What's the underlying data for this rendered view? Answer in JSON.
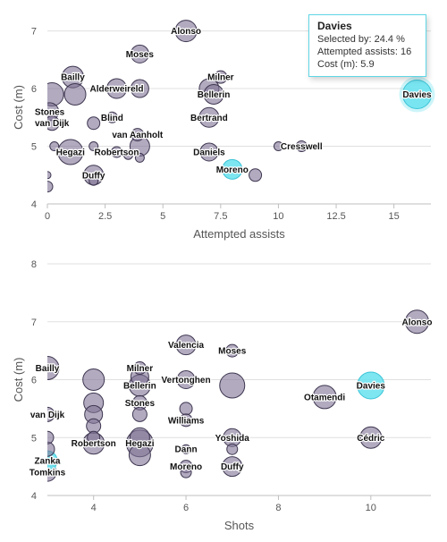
{
  "colors": {
    "bubble_fill": "#7e7394",
    "bubble_fill_opacity": 0.6,
    "bubble_stroke": "#3e3650",
    "highlight_fill": "#6fe3ef",
    "highlight_stroke": "#3cc4d6",
    "grid": "#e0e0e0",
    "axis_text": "#555555"
  },
  "chart_data": [
    {
      "type": "scatter",
      "xlabel": "Attempted assists",
      "ylabel": "Cost (m)",
      "xlim": [
        0,
        16.6
      ],
      "ylim": [
        4,
        7.35
      ],
      "xticks": [
        0,
        2.5,
        5,
        7.5,
        10,
        12.5,
        15
      ],
      "xtick_labels": [
        "0",
        "2.5",
        "5",
        "7.5",
        "10",
        "12.5",
        "15"
      ],
      "yticks": [
        4,
        5,
        6,
        7
      ],
      "grid": "horizontal",
      "points": [
        {
          "label": "Alonso",
          "x": 6,
          "y": 7.0,
          "r": 12
        },
        {
          "label": "Moses",
          "x": 4,
          "y": 6.6,
          "r": 10
        },
        {
          "label": "Bailly",
          "x": 1.1,
          "y": 6.2,
          "r": 12
        },
        {
          "label": "",
          "x": 1.2,
          "y": 5.9,
          "r": 12
        },
        {
          "label": "Alderweireld",
          "x": 3,
          "y": 6.0,
          "r": 11
        },
        {
          "label": "",
          "x": 4,
          "y": 6.0,
          "r": 10
        },
        {
          "label": "Milner",
          "x": 7.5,
          "y": 6.2,
          "r": 7
        },
        {
          "label": "",
          "x": 7,
          "y": 6.0,
          "r": 11
        },
        {
          "label": "Bellerin",
          "x": 7.2,
          "y": 5.9,
          "r": 11
        },
        {
          "label": "",
          "x": 0.2,
          "y": 5.9,
          "r": 13
        },
        {
          "label": "Stones",
          "x": 0.1,
          "y": 5.6,
          "r": 10
        },
        {
          "label": "Blind",
          "x": 2.8,
          "y": 5.5,
          "r": 6
        },
        {
          "label": "",
          "x": 2.0,
          "y": 5.4,
          "r": 7
        },
        {
          "label": "Bertrand",
          "x": 7,
          "y": 5.5,
          "r": 11
        },
        {
          "label": "van Dijk",
          "x": 0.2,
          "y": 5.4,
          "r": 8
        },
        {
          "label": "van Aanholt",
          "x": 3.9,
          "y": 5.2,
          "r": 7
        },
        {
          "label": "",
          "x": 4.0,
          "y": 5.0,
          "r": 11
        },
        {
          "label": "Hegazi",
          "x": 1.0,
          "y": 4.9,
          "r": 14
        },
        {
          "label": "",
          "x": 0.3,
          "y": 5.0,
          "r": 5
        },
        {
          "label": "Robertson",
          "x": 3.0,
          "y": 4.9,
          "r": 6
        },
        {
          "label": "",
          "x": 2.0,
          "y": 5.0,
          "r": 5
        },
        {
          "label": "",
          "x": 3.5,
          "y": 4.85,
          "r": 5
        },
        {
          "label": "",
          "x": 4.0,
          "y": 4.8,
          "r": 5
        },
        {
          "label": "Daniels",
          "x": 7.0,
          "y": 4.9,
          "r": 10
        },
        {
          "label": "Cresswell",
          "x": 11,
          "y": 5.0,
          "r": 6
        },
        {
          "label": "",
          "x": 10,
          "y": 5.0,
          "r": 5
        },
        {
          "label": "Moreno",
          "x": 8.0,
          "y": 4.6,
          "r": 11,
          "highlight": true
        },
        {
          "label": "",
          "x": 9.0,
          "y": 4.5,
          "r": 7
        },
        {
          "label": "Duffy",
          "x": 2.0,
          "y": 4.5,
          "r": 11
        },
        {
          "label": "",
          "x": 2.0,
          "y": 4.4,
          "r": 5
        },
        {
          "label": "",
          "x": 0.0,
          "y": 4.5,
          "r": 4
        },
        {
          "label": "",
          "x": 0.0,
          "y": 4.3,
          "r": 6
        },
        {
          "label": "Davies",
          "x": 16,
          "y": 5.9,
          "r": 16,
          "highlight": true,
          "active": true
        }
      ],
      "tooltip": {
        "title": "Davies",
        "lines": [
          {
            "label": "Selected by",
            "value": "24.4 %"
          },
          {
            "label": "Attempted assists",
            "value": "16"
          },
          {
            "label": "Cost (m)",
            "value": "5.9"
          }
        ]
      }
    },
    {
      "type": "scatter",
      "xlabel": "Shots",
      "ylabel": "Cost (m)",
      "xlim": [
        3,
        11.3
      ],
      "ylim": [
        4,
        8
      ],
      "xticks": [
        4,
        6,
        8,
        10
      ],
      "xtick_labels": [
        "4",
        "6",
        "8",
        "10"
      ],
      "yticks": [
        4,
        5,
        6,
        7,
        8
      ],
      "grid": "horizontal",
      "points": [
        {
          "label": "Alonso",
          "x": 11,
          "y": 7.0,
          "r": 13
        },
        {
          "label": "Valencia",
          "x": 6,
          "y": 6.6,
          "r": 11
        },
        {
          "label": "Moses",
          "x": 7,
          "y": 6.5,
          "r": 7
        },
        {
          "label": "Bailly",
          "x": 3,
          "y": 6.2,
          "r": 13
        },
        {
          "label": "",
          "x": 4,
          "y": 6.0,
          "r": 12
        },
        {
          "label": "Milner",
          "x": 5,
          "y": 6.2,
          "r": 7
        },
        {
          "label": "",
          "x": 5,
          "y": 6.05,
          "r": 10
        },
        {
          "label": "Bellerin",
          "x": 5,
          "y": 5.9,
          "r": 12
        },
        {
          "label": "Vertonghen",
          "x": 6,
          "y": 6.0,
          "r": 10
        },
        {
          "label": "",
          "x": 7,
          "y": 5.9,
          "r": 14
        },
        {
          "label": "Davies",
          "x": 10,
          "y": 5.9,
          "r": 15,
          "highlight": true
        },
        {
          "label": "Otamendi",
          "x": 9,
          "y": 5.7,
          "r": 13
        },
        {
          "label": "",
          "x": 4,
          "y": 5.6,
          "r": 11
        },
        {
          "label": "",
          "x": 4,
          "y": 5.4,
          "r": 10
        },
        {
          "label": "Stones",
          "x": 5,
          "y": 5.6,
          "r": 8
        },
        {
          "label": "",
          "x": 5,
          "y": 5.4,
          "r": 8
        },
        {
          "label": "",
          "x": 6,
          "y": 5.5,
          "r": 7
        },
        {
          "label": "Williams",
          "x": 6,
          "y": 5.3,
          "r": 7
        },
        {
          "label": "van Dijk",
          "x": 3,
          "y": 5.4,
          "r": 8
        },
        {
          "label": "",
          "x": 4,
          "y": 5.2,
          "r": 8
        },
        {
          "label": "",
          "x": 4,
          "y": 5.0,
          "r": 7
        },
        {
          "label": "Robertson",
          "x": 4,
          "y": 4.9,
          "r": 12
        },
        {
          "label": "",
          "x": 5,
          "y": 5.0,
          "r": 11
        },
        {
          "label": "Hegazi",
          "x": 5,
          "y": 4.9,
          "r": 15
        },
        {
          "label": "",
          "x": 5,
          "y": 4.7,
          "r": 12
        },
        {
          "label": "Yoshida",
          "x": 7,
          "y": 5.0,
          "r": 10
        },
        {
          "label": "",
          "x": 7,
          "y": 4.8,
          "r": 6
        },
        {
          "label": "Cédric",
          "x": 10,
          "y": 5.0,
          "r": 12
        },
        {
          "label": "Dann",
          "x": 6,
          "y": 4.8,
          "r": 5
        },
        {
          "label": "",
          "x": 3,
          "y": 5.0,
          "r": 7
        },
        {
          "label": "",
          "x": 3,
          "y": 4.8,
          "r": 8
        },
        {
          "label": "Zanka",
          "x": 3,
          "y": 4.6,
          "r": 11,
          "highlight": true
        },
        {
          "label": "",
          "x": 3,
          "y": 4.5,
          "r": 9,
          "highlight": true
        },
        {
          "label": "Moreno",
          "x": 6,
          "y": 4.5,
          "r": 7
        },
        {
          "label": "",
          "x": 6,
          "y": 4.4,
          "r": 6
        },
        {
          "label": "Duffy",
          "x": 7,
          "y": 4.5,
          "r": 11
        },
        {
          "label": "Tomkins",
          "x": 3,
          "y": 4.4,
          "r": 10
        }
      ]
    }
  ]
}
